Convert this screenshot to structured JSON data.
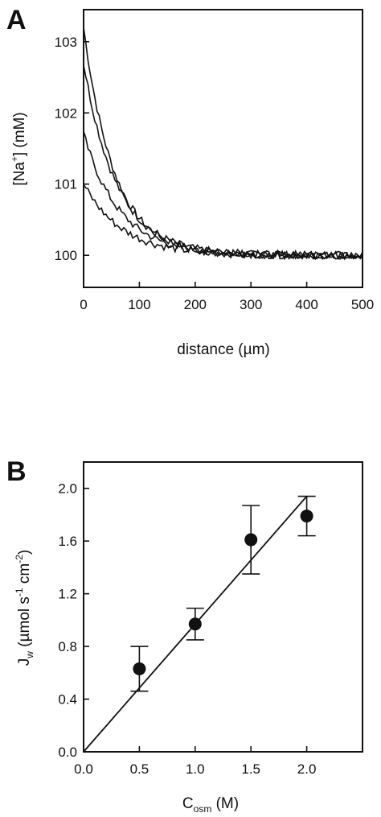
{
  "chart_data": [
    {
      "panel": "A",
      "type": "line",
      "xlabel": "distance (µm)",
      "ylabel_parts": [
        "[Na",
        "+",
        "] (mM)"
      ],
      "xlim": [
        0,
        500
      ],
      "ylim": [
        99.55,
        103.45
      ],
      "xticks": [
        "0",
        "100",
        "200",
        "300",
        "400",
        "500"
      ],
      "yticks": [
        "100",
        "101",
        "102",
        "103"
      ],
      "series": [
        {
          "decay": 55,
          "values_start": 103.2
        },
        {
          "decay": 60,
          "values_start": 102.7
        },
        {
          "decay": 65,
          "values_start": 101.7
        },
        {
          "decay": 70,
          "values_start": 101.0
        }
      ],
      "baseline": 100.0,
      "series_note_x": [
        0,
        500
      ]
    },
    {
      "panel": "B",
      "type": "scatter",
      "xlabel_parts": [
        "C",
        "osm",
        " (M)"
      ],
      "ylabel_parts": [
        "J",
        "w",
        " (µmol s",
        "-1",
        " cm",
        "-2",
        ")"
      ],
      "xlim": [
        0,
        2.5
      ],
      "ylim": [
        0,
        2.2
      ],
      "xticks": [
        "0.0",
        "0.5",
        "1.0",
        "1.5",
        "2.0"
      ],
      "yticks": [
        "0.0",
        "0.4",
        "0.8",
        "1.2",
        "1.6",
        "2.0"
      ],
      "points": [
        {
          "x": 0.5,
          "y": 0.63,
          "err": 0.17
        },
        {
          "x": 1.0,
          "y": 0.97,
          "err": 0.12
        },
        {
          "x": 1.5,
          "y": 1.61,
          "err": 0.26
        },
        {
          "x": 2.0,
          "y": 1.79,
          "err": 0.15
        }
      ],
      "fit_line": {
        "x": [
          0,
          2.0
        ],
        "y": [
          0,
          1.94
        ]
      }
    }
  ]
}
